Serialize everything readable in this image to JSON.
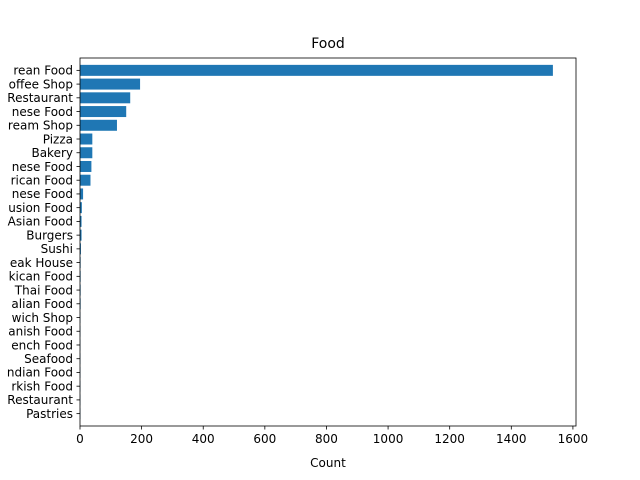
{
  "chart_data": {
    "type": "bar",
    "orientation": "horizontal",
    "title": "Food",
    "xlabel": "Count",
    "ylabel": "",
    "xlim": [
      0,
      1610
    ],
    "xticks": [
      0,
      200,
      400,
      600,
      800,
      1000,
      1200,
      1400,
      1600
    ],
    "grid": false,
    "bar_color": "#1f77b4",
    "categories": [
      "Korean Food",
      "Coffee Shop",
      "Restaurant",
      "Chinese Food",
      "Ice Cream Shop",
      "Pizza",
      "Bakery",
      "Japanese Food",
      "American Food",
      "Vietnamese Food",
      "Fusion Food",
      "Asian Food",
      "Burgers",
      "Sushi",
      "Steak House",
      "Mexican Food",
      "Thai Food",
      "Italian Food",
      "Sandwich Shop",
      "Spanish Food",
      "French Food",
      "Seafood",
      "Indian Food",
      "Turkish Food",
      "Restaurant",
      "Pastries"
    ],
    "visible_tick_labels": [
      "rean Food",
      "offee Shop",
      "Restaurant",
      "nese Food",
      "ream Shop",
      "Pizza",
      "Bakery",
      "nese Food",
      "rican Food",
      "nese Food",
      "usion Food",
      "Asian Food",
      "Burgers",
      "Sushi",
      "eak House",
      "kican Food",
      "Thai Food",
      "alian Food",
      "wich Shop",
      "anish Food",
      "ench Food",
      "Seafood",
      "ndian Food",
      "rkish Food",
      "Restaurant",
      "Pastries"
    ],
    "values": [
      1535,
      195,
      163,
      150,
      120,
      40,
      40,
      37,
      34,
      10,
      6,
      5,
      5,
      3,
      2,
      2,
      2,
      2,
      1,
      1,
      1,
      1,
      1,
      1,
      1,
      1
    ]
  }
}
